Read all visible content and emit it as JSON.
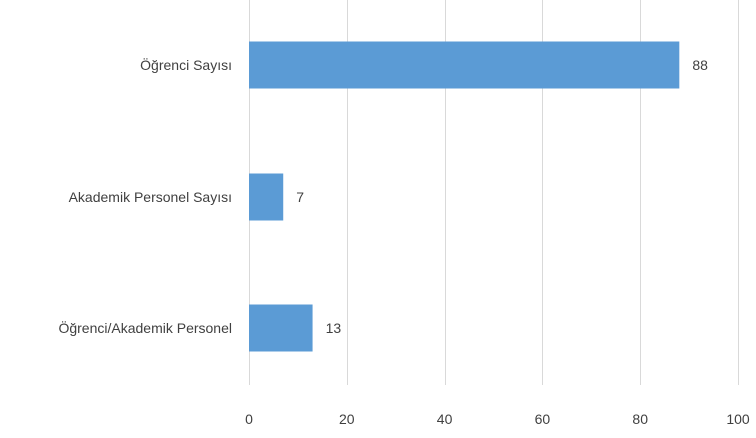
{
  "chart_data": {
    "type": "bar",
    "orientation": "horizontal",
    "categories": [
      "Öğrenci Sayısı",
      "Akademik Personel Sayısı",
      "Öğrenci/Akademik Personel"
    ],
    "values": [
      88,
      7,
      13
    ],
    "data_labels": [
      "88",
      "7",
      "13"
    ],
    "xlim": [
      0,
      100
    ],
    "x_ticks": [
      0,
      20,
      40,
      60,
      80,
      100
    ],
    "x_tick_labels": [
      "0",
      "20",
      "40",
      "60",
      "80",
      "100"
    ],
    "grid": true,
    "bar_color": "#5b9bd5",
    "title": "",
    "xlabel": "",
    "ylabel": ""
  }
}
